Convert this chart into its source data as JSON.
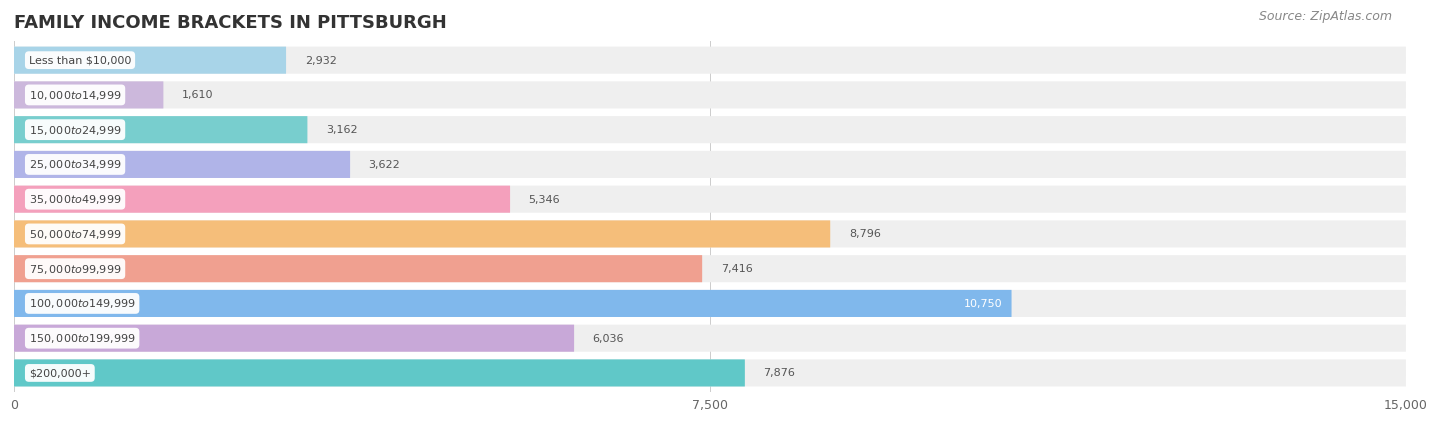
{
  "title": "FAMILY INCOME BRACKETS IN PITTSBURGH",
  "source": "Source: ZipAtlas.com",
  "categories": [
    "Less than $10,000",
    "$10,000 to $14,999",
    "$15,000 to $24,999",
    "$25,000 to $34,999",
    "$35,000 to $49,999",
    "$50,000 to $74,999",
    "$75,000 to $99,999",
    "$100,000 to $149,999",
    "$150,000 to $199,999",
    "$200,000+"
  ],
  "values": [
    2932,
    1610,
    3162,
    3622,
    5346,
    8796,
    7416,
    10750,
    6036,
    7876
  ],
  "bar_colors": [
    "#a8d4e8",
    "#ccb8dc",
    "#78cece",
    "#b0b4e8",
    "#f4a0bc",
    "#f5be7a",
    "#f0a090",
    "#80b8ec",
    "#c8a8d8",
    "#60c8c8"
  ],
  "background_color": "#ffffff",
  "bar_bg_color": "#efefef",
  "xlim": [
    0,
    15000
  ],
  "xticks": [
    0,
    7500,
    15000
  ],
  "title_fontsize": 13,
  "source_fontsize": 9
}
